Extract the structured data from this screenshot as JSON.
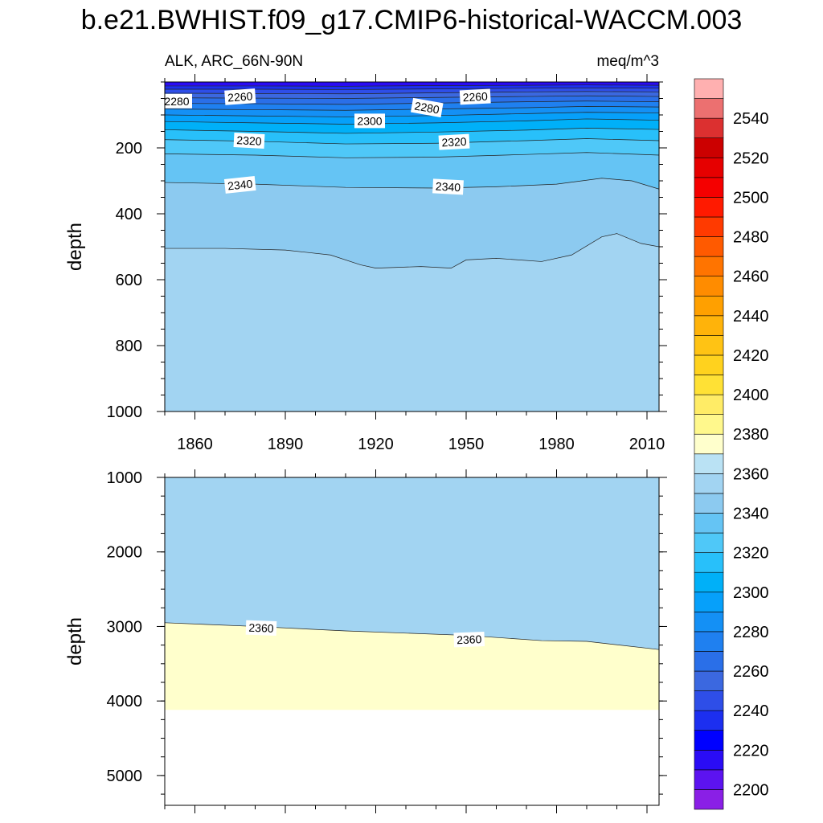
{
  "chart_data": {
    "type": "heatmap",
    "title": "b.e21.BWHIST.f09_g17.CMIP6-historical-WACCM.003",
    "subtitle_left": "ALK, ARC_66N-90N",
    "subtitle_right": "meq/m^3",
    "ylabel": "depth",
    "xlabel": "",
    "x_range": [
      1850,
      2014
    ],
    "x_ticks": [
      "1860",
      "1890",
      "1920",
      "1950",
      "1980",
      "2010"
    ],
    "panels": [
      {
        "name": "upper",
        "ylim": [
          0,
          1000
        ],
        "y_ticks": [
          "200",
          "400",
          "600",
          "800",
          "1000"
        ],
        "contours": [
          {
            "value": 2340,
            "depth": [
              [
                1850,
                505
              ],
              [
                1870,
                505
              ],
              [
                1890,
                510
              ],
              [
                1905,
                525
              ],
              [
                1915,
                555
              ],
              [
                1920,
                565
              ],
              [
                1935,
                560
              ],
              [
                1945,
                565
              ],
              [
                1950,
                540
              ],
              [
                1960,
                535
              ],
              [
                1975,
                545
              ],
              [
                1985,
                525
              ],
              [
                1995,
                470
              ],
              [
                2000,
                460
              ],
              [
                2008,
                490
              ],
              [
                2014,
                500
              ]
            ]
          },
          {
            "value": 2330,
            "depth": [
              [
                1850,
                305
              ],
              [
                1880,
                310
              ],
              [
                1910,
                320
              ],
              [
                1940,
                322
              ],
              [
                1960,
                318
              ],
              [
                1980,
                310
              ],
              [
                1995,
                292
              ],
              [
                2005,
                300
              ],
              [
                2014,
                325
              ]
            ]
          },
          {
            "value": 2320,
            "depth": [
              [
                1850,
                218
              ],
              [
                1880,
                222
              ],
              [
                1910,
                230
              ],
              [
                1940,
                228
              ],
              [
                1970,
                220
              ],
              [
                1990,
                214
              ],
              [
                2014,
                222
              ]
            ]
          },
          {
            "value": 2310,
            "depth": [
              [
                1850,
                175
              ],
              [
                1880,
                180
              ],
              [
                1910,
                188
              ],
              [
                1940,
                186
              ],
              [
                1970,
                178
              ],
              [
                1990,
                172
              ],
              [
                2014,
                178
              ]
            ]
          },
          {
            "value": 2300,
            "depth": [
              [
                1850,
                145
              ],
              [
                1880,
                150
              ],
              [
                1910,
                156
              ],
              [
                1940,
                152
              ],
              [
                1970,
                146
              ],
              [
                1990,
                140
              ],
              [
                2014,
                144
              ]
            ]
          },
          {
            "value": 2290,
            "depth": [
              [
                1850,
                120
              ],
              [
                1880,
                124
              ],
              [
                1910,
                128
              ],
              [
                1940,
                124
              ],
              [
                1970,
                118
              ],
              [
                1990,
                112
              ],
              [
                2014,
                116
              ]
            ]
          },
          {
            "value": 2280,
            "depth": [
              [
                1850,
                100
              ],
              [
                1880,
                103
              ],
              [
                1910,
                106
              ],
              [
                1940,
                102
              ],
              [
                1970,
                96
              ],
              [
                1990,
                92
              ],
              [
                2014,
                94
              ]
            ]
          },
          {
            "value": 2270,
            "depth": [
              [
                1850,
                82
              ],
              [
                1880,
                84
              ],
              [
                1910,
                86
              ],
              [
                1940,
                82
              ],
              [
                1970,
                78
              ],
              [
                1990,
                74
              ],
              [
                2014,
                76
              ]
            ]
          },
          {
            "value": 2260,
            "depth": [
              [
                1850,
                65
              ],
              [
                1880,
                66
              ],
              [
                1910,
                68
              ],
              [
                1940,
                64
              ],
              [
                1970,
                60
              ],
              [
                1990,
                58
              ],
              [
                2014,
                60
              ]
            ]
          },
          {
            "value": 2250,
            "depth": [
              [
                1850,
                48
              ],
              [
                1880,
                49
              ],
              [
                1910,
                50
              ],
              [
                1940,
                47
              ],
              [
                1970,
                44
              ],
              [
                1990,
                42
              ],
              [
                2014,
                44
              ]
            ]
          },
          {
            "value": 2240,
            "depth": [
              [
                1850,
                34
              ],
              [
                1880,
                35
              ],
              [
                1910,
                36
              ],
              [
                1940,
                33
              ],
              [
                1970,
                30
              ],
              [
                1990,
                29
              ],
              [
                2014,
                30
              ]
            ]
          },
          {
            "value": 2230,
            "depth": [
              [
                1850,
                22
              ],
              [
                1880,
                22
              ],
              [
                1910,
                23
              ],
              [
                1940,
                21
              ],
              [
                1970,
                19
              ],
              [
                1990,
                18
              ],
              [
                2014,
                19
              ]
            ]
          },
          {
            "value": 2220,
            "depth": [
              [
                1850,
                12
              ],
              [
                1880,
                12
              ],
              [
                1910,
                13
              ],
              [
                1940,
                11
              ],
              [
                1970,
                10
              ],
              [
                1990,
                9
              ],
              [
                2014,
                10
              ]
            ]
          }
        ],
        "labels": [
          {
            "text": "2280",
            "year": 1854,
            "depth": 58,
            "angle": 0
          },
          {
            "text": "2260",
            "year": 1875,
            "depth": 45,
            "angle": -4
          },
          {
            "text": "2300",
            "year": 1918,
            "depth": 118,
            "angle": 0
          },
          {
            "text": "2280",
            "year": 1937,
            "depth": 78,
            "angle": 10
          },
          {
            "text": "2260",
            "year": 1953,
            "depth": 45,
            "angle": -3
          },
          {
            "text": "2320",
            "year": 1878,
            "depth": 178,
            "angle": 3
          },
          {
            "text": "2320",
            "year": 1946,
            "depth": 182,
            "angle": -3
          },
          {
            "text": "2340",
            "year": 1875,
            "depth": 312,
            "angle": -6
          },
          {
            "text": "2340",
            "year": 1944,
            "depth": 318,
            "angle": 3
          }
        ]
      },
      {
        "name": "lower",
        "ylim": [
          1000,
          5400
        ],
        "y_ticks": [
          "1000",
          "2000",
          "3000",
          "4000",
          "5000"
        ],
        "bottom_depth": 4120,
        "contours": [
          {
            "value": 2360,
            "depth": [
              [
                1850,
                2950
              ],
              [
                1880,
                3000
              ],
              [
                1910,
                3060
              ],
              [
                1950,
                3120
              ],
              [
                1975,
                3190
              ],
              [
                1990,
                3200
              ],
              [
                2014,
                3310
              ]
            ]
          }
        ],
        "labels": [
          {
            "text": "2360",
            "year": 1882,
            "depth": 3020,
            "angle": 2
          },
          {
            "text": "2360",
            "year": 1951,
            "depth": 3175,
            "angle": -2
          }
        ]
      }
    ],
    "colorbar": {
      "levels": [
        2200,
        2210,
        2220,
        2230,
        2240,
        2250,
        2260,
        2270,
        2280,
        2290,
        2300,
        2310,
        2320,
        2330,
        2340,
        2350,
        2360,
        2370,
        2380,
        2390,
        2400,
        2410,
        2420,
        2430,
        2440,
        2450,
        2460,
        2470,
        2480,
        2490,
        2500,
        2510,
        2520,
        2530,
        2540,
        2550
      ],
      "labels": [
        "2200",
        "2220",
        "2240",
        "2260",
        "2280",
        "2300",
        "2320",
        "2340",
        "2360",
        "2380",
        "2400",
        "2420",
        "2440",
        "2460",
        "2480",
        "2500",
        "2520",
        "2540"
      ],
      "colors": [
        "#8a1fe6",
        "#5c13f0",
        "#2a0cf5",
        "#0000ff",
        "#1c2ff0",
        "#2e4ee8",
        "#3b68e0",
        "#2a6fe8",
        "#1f80f0",
        "#1490f5",
        "#06a0fa",
        "#00b0f8",
        "#28c0fa",
        "#4fc8f8",
        "#65c4f4",
        "#8ccaf0",
        "#a2d4f2",
        "#bae2f4",
        "#ffffcc",
        "#fff88c",
        "#ffec66",
        "#ffe135",
        "#ffd21e",
        "#ffc314",
        "#ffb30a",
        "#ffa000",
        "#ff8c00",
        "#ff7400",
        "#ff5a00",
        "#ff3a00",
        "#ff1a00",
        "#f50000",
        "#e60000",
        "#cc0000",
        "#dc3030",
        "#ec7070",
        "#ffb0b0"
      ]
    }
  }
}
